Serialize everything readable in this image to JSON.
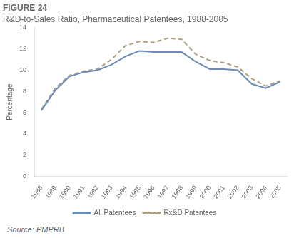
{
  "chart_data": {
    "type": "line",
    "title": "FIGURE 24",
    "subtitle": "R&D-to-Sales Ratio, Pharmaceutical Patentees, 1988-2005",
    "y_label": "Percentage",
    "source": "Source: PMPRB",
    "x": [
      1988,
      1989,
      1990,
      1991,
      1992,
      1993,
      1994,
      1995,
      1996,
      1997,
      1998,
      1999,
      2000,
      2001,
      2002,
      2003,
      2004,
      2005
    ],
    "series": [
      {
        "name": "All Patentees",
        "color": "#6b8cba",
        "line_style": "solid",
        "values": [
          6.2,
          8.1,
          9.4,
          9.8,
          10.0,
          10.5,
          11.3,
          11.8,
          11.7,
          11.7,
          11.7,
          10.8,
          10.1,
          10.1,
          10.0,
          8.7,
          8.3,
          8.9
        ]
      },
      {
        "name": "Rx&D Patentees",
        "color": "#b0a080",
        "line_style": "dashed",
        "values": [
          6.3,
          8.3,
          9.5,
          9.9,
          10.1,
          11.0,
          12.3,
          12.7,
          12.6,
          13.0,
          12.9,
          11.5,
          10.9,
          10.7,
          10.3,
          9.2,
          8.5,
          9.0
        ]
      }
    ],
    "xlim": [
      1987.5,
      2005.5
    ],
    "xticks": [
      1988,
      1989,
      1990,
      1991,
      1992,
      1993,
      1994,
      1995,
      1996,
      1997,
      1998,
      1999,
      2000,
      2001,
      2002,
      2003,
      2004,
      2005
    ],
    "ylim": [
      0,
      14
    ],
    "yticks": [
      0,
      2,
      4,
      6,
      8,
      10,
      12,
      14
    ],
    "grid": false,
    "legend": "bottom"
  }
}
